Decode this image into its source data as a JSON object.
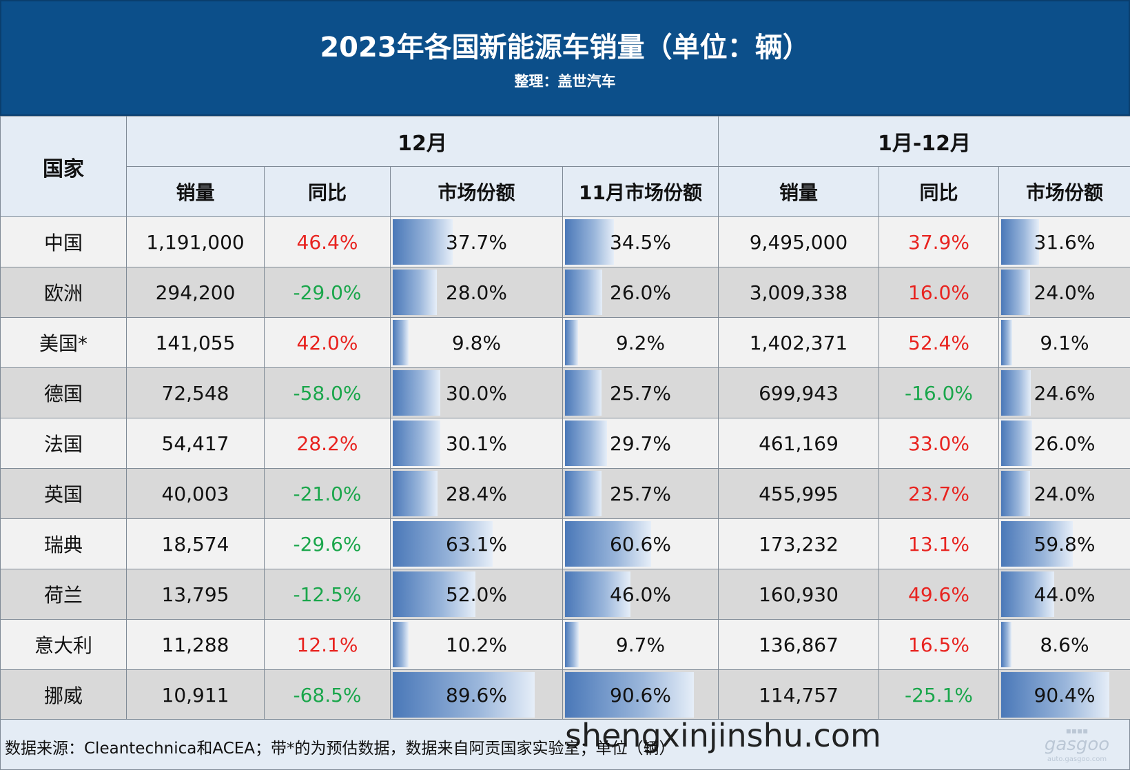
{
  "header": {
    "title": "2023年各国新能源车销量（单位：辆）",
    "subtitle": "整理：盖世汽车"
  },
  "columns": {
    "country": "国家",
    "dec_group": "12月",
    "ytd_group": "1月-12月",
    "dec_sales": "销量",
    "dec_yoy": "同比",
    "dec_share": "市场份额",
    "nov_share": "11月市场份额",
    "ytd_sales": "销量",
    "ytd_yoy": "同比",
    "ytd_share": "市场份额"
  },
  "chart_data": {
    "type": "table",
    "rows": [
      {
        "country": "中国",
        "dec_sales": "1,191,000",
        "dec_yoy": "46.4%",
        "dec_share": "37.7%",
        "nov_share": "34.5%",
        "ytd_sales": "9,495,000",
        "ytd_yoy": "37.9%",
        "ytd_share": "31.6%"
      },
      {
        "country": "欧洲",
        "dec_sales": "294,200",
        "dec_yoy": "-29.0%",
        "dec_share": "28.0%",
        "nov_share": "26.0%",
        "ytd_sales": "3,009,338",
        "ytd_yoy": "16.0%",
        "ytd_share": "24.0%"
      },
      {
        "country": "美国*",
        "dec_sales": "141,055",
        "dec_yoy": "42.0%",
        "dec_share": "9.8%",
        "nov_share": "9.2%",
        "ytd_sales": "1,402,371",
        "ytd_yoy": "52.4%",
        "ytd_share": "9.1%"
      },
      {
        "country": "德国",
        "dec_sales": "72,548",
        "dec_yoy": "-58.0%",
        "dec_share": "30.0%",
        "nov_share": "25.7%",
        "ytd_sales": "699,943",
        "ytd_yoy": "-16.0%",
        "ytd_share": "24.6%"
      },
      {
        "country": "法国",
        "dec_sales": "54,417",
        "dec_yoy": "28.2%",
        "dec_share": "30.1%",
        "nov_share": "29.7%",
        "ytd_sales": "461,169",
        "ytd_yoy": "33.0%",
        "ytd_share": "26.0%"
      },
      {
        "country": "英国",
        "dec_sales": "40,003",
        "dec_yoy": "-21.0%",
        "dec_share": "28.4%",
        "nov_share": "25.7%",
        "ytd_sales": "455,995",
        "ytd_yoy": "23.7%",
        "ytd_share": "24.0%"
      },
      {
        "country": "瑞典",
        "dec_sales": "18,574",
        "dec_yoy": "-29.6%",
        "dec_share": "63.1%",
        "nov_share": "60.6%",
        "ytd_sales": "173,232",
        "ytd_yoy": "13.1%",
        "ytd_share": "59.8%"
      },
      {
        "country": "荷兰",
        "dec_sales": "13,795",
        "dec_yoy": "-12.5%",
        "dec_share": "52.0%",
        "nov_share": "46.0%",
        "ytd_sales": "160,930",
        "ytd_yoy": "49.6%",
        "ytd_share": "44.0%"
      },
      {
        "country": "意大利",
        "dec_sales": "11,288",
        "dec_yoy": "12.1%",
        "dec_share": "10.2%",
        "nov_share": "9.7%",
        "ytd_sales": "136,867",
        "ytd_yoy": "16.5%",
        "ytd_share": "8.6%"
      },
      {
        "country": "挪威",
        "dec_sales": "10,911",
        "dec_yoy": "-68.5%",
        "dec_share": "89.6%",
        "nov_share": "90.6%",
        "ytd_sales": "114,757",
        "ytd_yoy": "-25.1%",
        "ytd_share": "90.4%"
      }
    ]
  },
  "colors": {
    "banner": "#0c4f8a",
    "positive": "#e8231f",
    "negative": "#1aa64b",
    "bar": "#4a78b8"
  },
  "footer": {
    "note": "数据来源：Cleantechnica和ACEA；带*的为预估数据，数据来自阿贡国家实验室；单位（辆）",
    "watermark": "shengxinjinshu.com",
    "logo_icon": "gasgoo-logo-icon"
  }
}
